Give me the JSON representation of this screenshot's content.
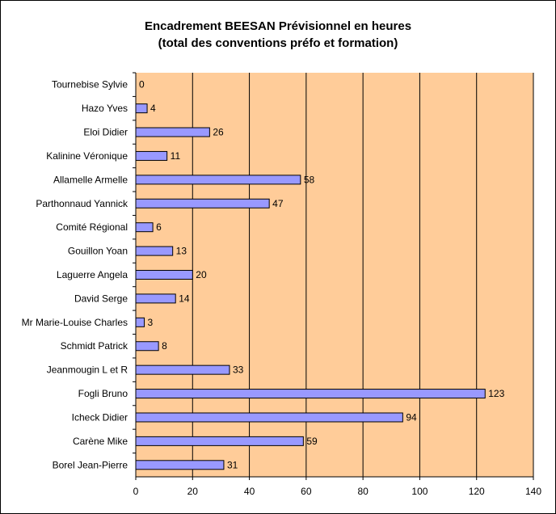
{
  "chart_data": {
    "type": "bar",
    "orientation": "horizontal",
    "title_line1": "Encadrement BEESAN Prévisionnel en heures",
    "title_line2": "(total des conventions préfo et formation)",
    "categories": [
      "Tournebise Sylvie",
      "Hazo Yves",
      "Eloi Didier",
      "Kalinine Véronique",
      "Allamelle Armelle",
      "Parthonnaud Yannick",
      "Comité Régional",
      "Gouillon Yoan",
      "Laguerre Angela",
      "David Serge",
      "Mr Marie-Louise Charles",
      "Schmidt Patrick",
      "Jeanmougin L et R",
      "Fogli Bruno",
      "Icheck Didier",
      "Carène Mike",
      "Borel Jean-Pierre"
    ],
    "values": [
      0,
      4,
      26,
      11,
      58,
      47,
      6,
      13,
      20,
      14,
      3,
      8,
      33,
      123,
      94,
      59,
      31
    ],
    "xlim": [
      0,
      140
    ],
    "xticks": [
      0,
      20,
      40,
      60,
      80,
      100,
      120,
      140
    ],
    "grid": true,
    "legend": "none",
    "colors": {
      "plot_bg": "#ffcc99",
      "bar_fill": "#9999ff",
      "bar_stroke": "#000000",
      "grid": "#000000"
    }
  }
}
